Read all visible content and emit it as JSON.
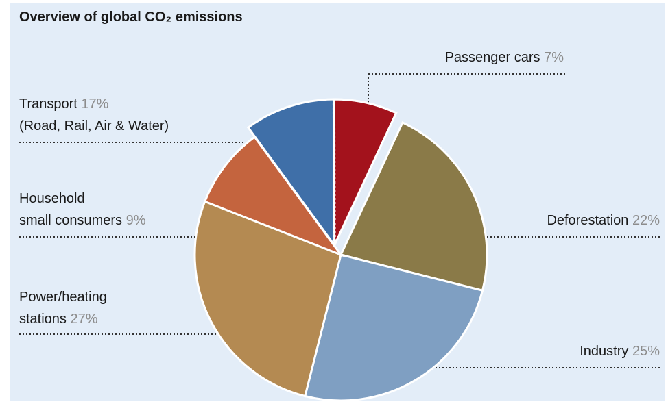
{
  "chart_data": {
    "type": "pie",
    "title": "Overview of global CO₂ emissions",
    "categories": [
      "Transport",
      "Deforestation",
      "Industry",
      "Power/heating\nstations",
      "Household\nsmall consumers"
    ],
    "values": [
      17,
      22,
      25,
      27,
      9
    ],
    "value_labels": [
      "17%",
      "22%",
      "25%",
      "27%",
      "9%"
    ],
    "colors": [
      "#3f6fa8",
      "#8a7a48",
      "#7f9fc2",
      "#b48a52",
      "#c4643e"
    ],
    "annotation": "(Road, Rail, Air & Water)",
    "subset": {
      "name": "Passenger cars",
      "value": 7,
      "value_label": "7%",
      "color": "#a3121c"
    }
  }
}
